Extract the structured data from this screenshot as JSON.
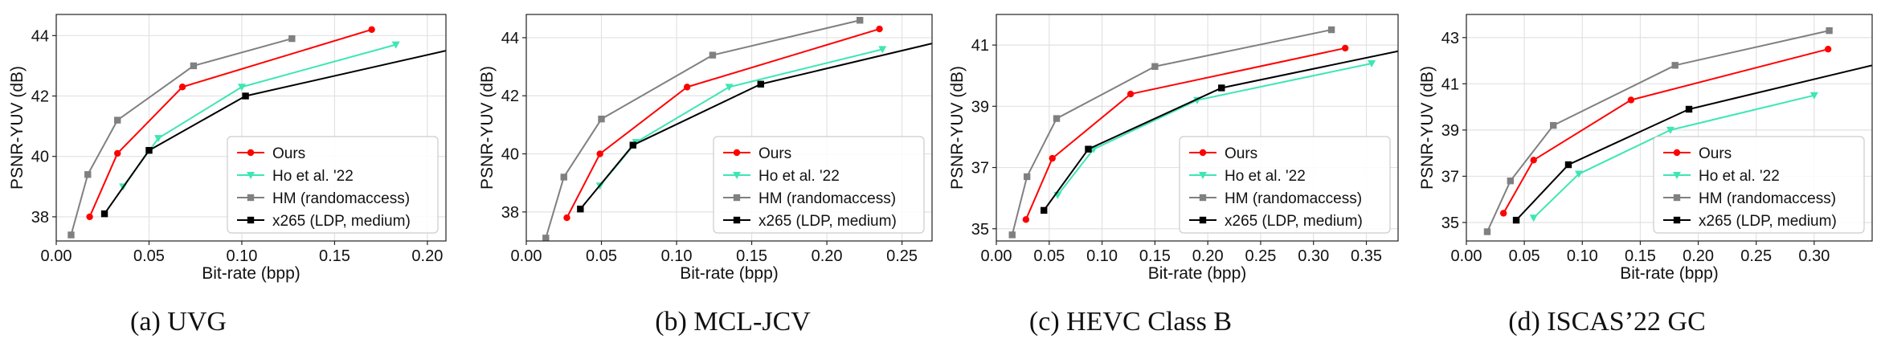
{
  "series_colors": {
    "Ours": "#ff0000",
    "Ho et al. '22": "#3ee6b4",
    "HM (randomaccess)": "#808080",
    "x265 (LDP, medium)": "#000000"
  },
  "chart_data": [
    {
      "type": "line",
      "caption": "(a) UVG",
      "xlabel": "Bit-rate (bpp)",
      "ylabel": "PSNR-YUV (dB)",
      "xlim": [
        0.0,
        0.21
      ],
      "ylim": [
        37.2,
        44.7
      ],
      "xticks": [
        0.0,
        0.05,
        0.1,
        0.15,
        0.2
      ],
      "xtick_labels": [
        "0.00",
        "0.05",
        "0.10",
        "0.15",
        "0.20"
      ],
      "yticks": [
        38,
        40,
        42,
        44
      ],
      "ytick_labels": [
        "38",
        "40",
        "42",
        "44"
      ],
      "grid": true,
      "legend": "lower-right",
      "series": [
        {
          "name": "Ours",
          "marker": "circle",
          "x": [
            0.018,
            0.033,
            0.068,
            0.17
          ],
          "y": [
            38.0,
            40.1,
            42.3,
            44.2
          ]
        },
        {
          "name": "Ho et al. '22",
          "marker": "triangle-down",
          "x": [
            0.036,
            0.055,
            0.1,
            0.183
          ],
          "y": [
            39.0,
            40.6,
            42.3,
            43.7
          ]
        },
        {
          "name": "HM (randomaccess)",
          "marker": "square",
          "x": [
            0.008,
            0.017,
            0.033,
            0.074,
            0.127
          ],
          "y": [
            37.4,
            39.4,
            41.2,
            43.0,
            43.9
          ]
        },
        {
          "name": "x265 (LDP, medium)",
          "marker": "square",
          "x": [
            0.026,
            0.05,
            0.102,
            0.21
          ],
          "y": [
            38.1,
            40.2,
            42.0,
            43.5
          ]
        }
      ]
    },
    {
      "type": "line",
      "caption": "(b) MCL-JCV",
      "xlabel": "Bit-rate (bpp)",
      "ylabel": "PSNR-YUV (dB)",
      "xlim": [
        0.0,
        0.27
      ],
      "ylim": [
        37.0,
        44.8
      ],
      "xticks": [
        0.0,
        0.05,
        0.1,
        0.15,
        0.2,
        0.25
      ],
      "xtick_labels": [
        "0.00",
        "0.05",
        "0.10",
        "0.15",
        "0.20",
        "0.25"
      ],
      "yticks": [
        38,
        40,
        42,
        44
      ],
      "ytick_labels": [
        "38",
        "40",
        "42",
        "44"
      ],
      "grid": true,
      "legend": "lower-right",
      "series": [
        {
          "name": "Ours",
          "marker": "circle",
          "x": [
            0.027,
            0.049,
            0.107,
            0.235
          ],
          "y": [
            37.8,
            40.0,
            42.3,
            44.3
          ]
        },
        {
          "name": "Ho et al. '22",
          "marker": "triangle-down",
          "x": [
            0.049,
            0.073,
            0.135,
            0.237
          ],
          "y": [
            38.9,
            40.4,
            42.3,
            43.6
          ]
        },
        {
          "name": "HM (randomaccess)",
          "marker": "square",
          "x": [
            0.013,
            0.025,
            0.05,
            0.124,
            0.222
          ],
          "y": [
            37.1,
            39.2,
            41.2,
            43.4,
            44.6
          ]
        },
        {
          "name": "x265 (LDP, medium)",
          "marker": "square",
          "x": [
            0.036,
            0.071,
            0.156,
            0.27
          ],
          "y": [
            38.1,
            40.3,
            42.4,
            43.8
          ]
        }
      ]
    },
    {
      "type": "line",
      "caption": "(c) HEVC Class B",
      "xlabel": "Bit-rate (bpp)",
      "ylabel": "PSNR-YUV (dB)",
      "xlim": [
        0.0,
        0.38
      ],
      "ylim": [
        34.6,
        42.0
      ],
      "xticks": [
        0.0,
        0.05,
        0.1,
        0.15,
        0.2,
        0.25,
        0.3,
        0.35
      ],
      "xtick_labels": [
        "0.00",
        "0.05",
        "0.10",
        "0.15",
        "0.20",
        "0.25",
        "0.30",
        "0.35"
      ],
      "yticks": [
        35,
        37,
        39,
        41
      ],
      "ytick_labels": [
        "35",
        "37",
        "39",
        "41"
      ],
      "grid": true,
      "legend": "lower-right",
      "series": [
        {
          "name": "Ours",
          "marker": "circle",
          "x": [
            0.028,
            0.053,
            0.127,
            0.33
          ],
          "y": [
            35.3,
            37.3,
            39.4,
            40.9
          ]
        },
        {
          "name": "Ho et al. '22",
          "marker": "triangle-down",
          "x": [
            0.058,
            0.092,
            0.19,
            0.355
          ],
          "y": [
            36.1,
            37.6,
            39.2,
            40.4
          ]
        },
        {
          "name": "HM (randomaccess)",
          "marker": "square",
          "x": [
            0.015,
            0.029,
            0.057,
            0.15,
            0.317
          ],
          "y": [
            34.8,
            36.7,
            38.6,
            40.3,
            41.5
          ]
        },
        {
          "name": "x265 (LDP, medium)",
          "marker": "square",
          "x": [
            0.045,
            0.087,
            0.213,
            0.38
          ],
          "y": [
            35.6,
            37.6,
            39.6,
            40.8
          ]
        }
      ]
    },
    {
      "type": "line",
      "caption": "(d) ISCAS’22 GC",
      "xlabel": "Bit-rate (bpp)",
      "ylabel": "PSNR-YUV (dB)",
      "xlim": [
        0.0,
        0.35
      ],
      "ylim": [
        34.2,
        44.0
      ],
      "xticks": [
        0.0,
        0.05,
        0.1,
        0.15,
        0.2,
        0.25,
        0.3
      ],
      "xtick_labels": [
        "0.00",
        "0.05",
        "0.10",
        "0.15",
        "0.20",
        "0.25",
        "0.30"
      ],
      "yticks": [
        35,
        37,
        39,
        41,
        43
      ],
      "ytick_labels": [
        "35",
        "37",
        "39",
        "41",
        "43"
      ],
      "grid": true,
      "legend": "lower-right",
      "series": [
        {
          "name": "Ours",
          "marker": "circle",
          "x": [
            0.032,
            0.058,
            0.142,
            0.312
          ],
          "y": [
            35.4,
            37.7,
            40.3,
            42.5
          ]
        },
        {
          "name": "Ho et al. '22",
          "marker": "triangle-down",
          "x": [
            0.058,
            0.097,
            0.176,
            0.3
          ],
          "y": [
            35.2,
            37.1,
            39.0,
            40.5
          ]
        },
        {
          "name": "HM (randomaccess)",
          "marker": "square",
          "x": [
            0.018,
            0.038,
            0.075,
            0.18,
            0.313
          ],
          "y": [
            34.6,
            36.8,
            39.2,
            41.8,
            43.3
          ]
        },
        {
          "name": "x265 (LDP, medium)",
          "marker": "square",
          "x": [
            0.043,
            0.088,
            0.192,
            0.35
          ],
          "y": [
            35.1,
            37.5,
            39.9,
            41.8
          ]
        }
      ]
    }
  ]
}
